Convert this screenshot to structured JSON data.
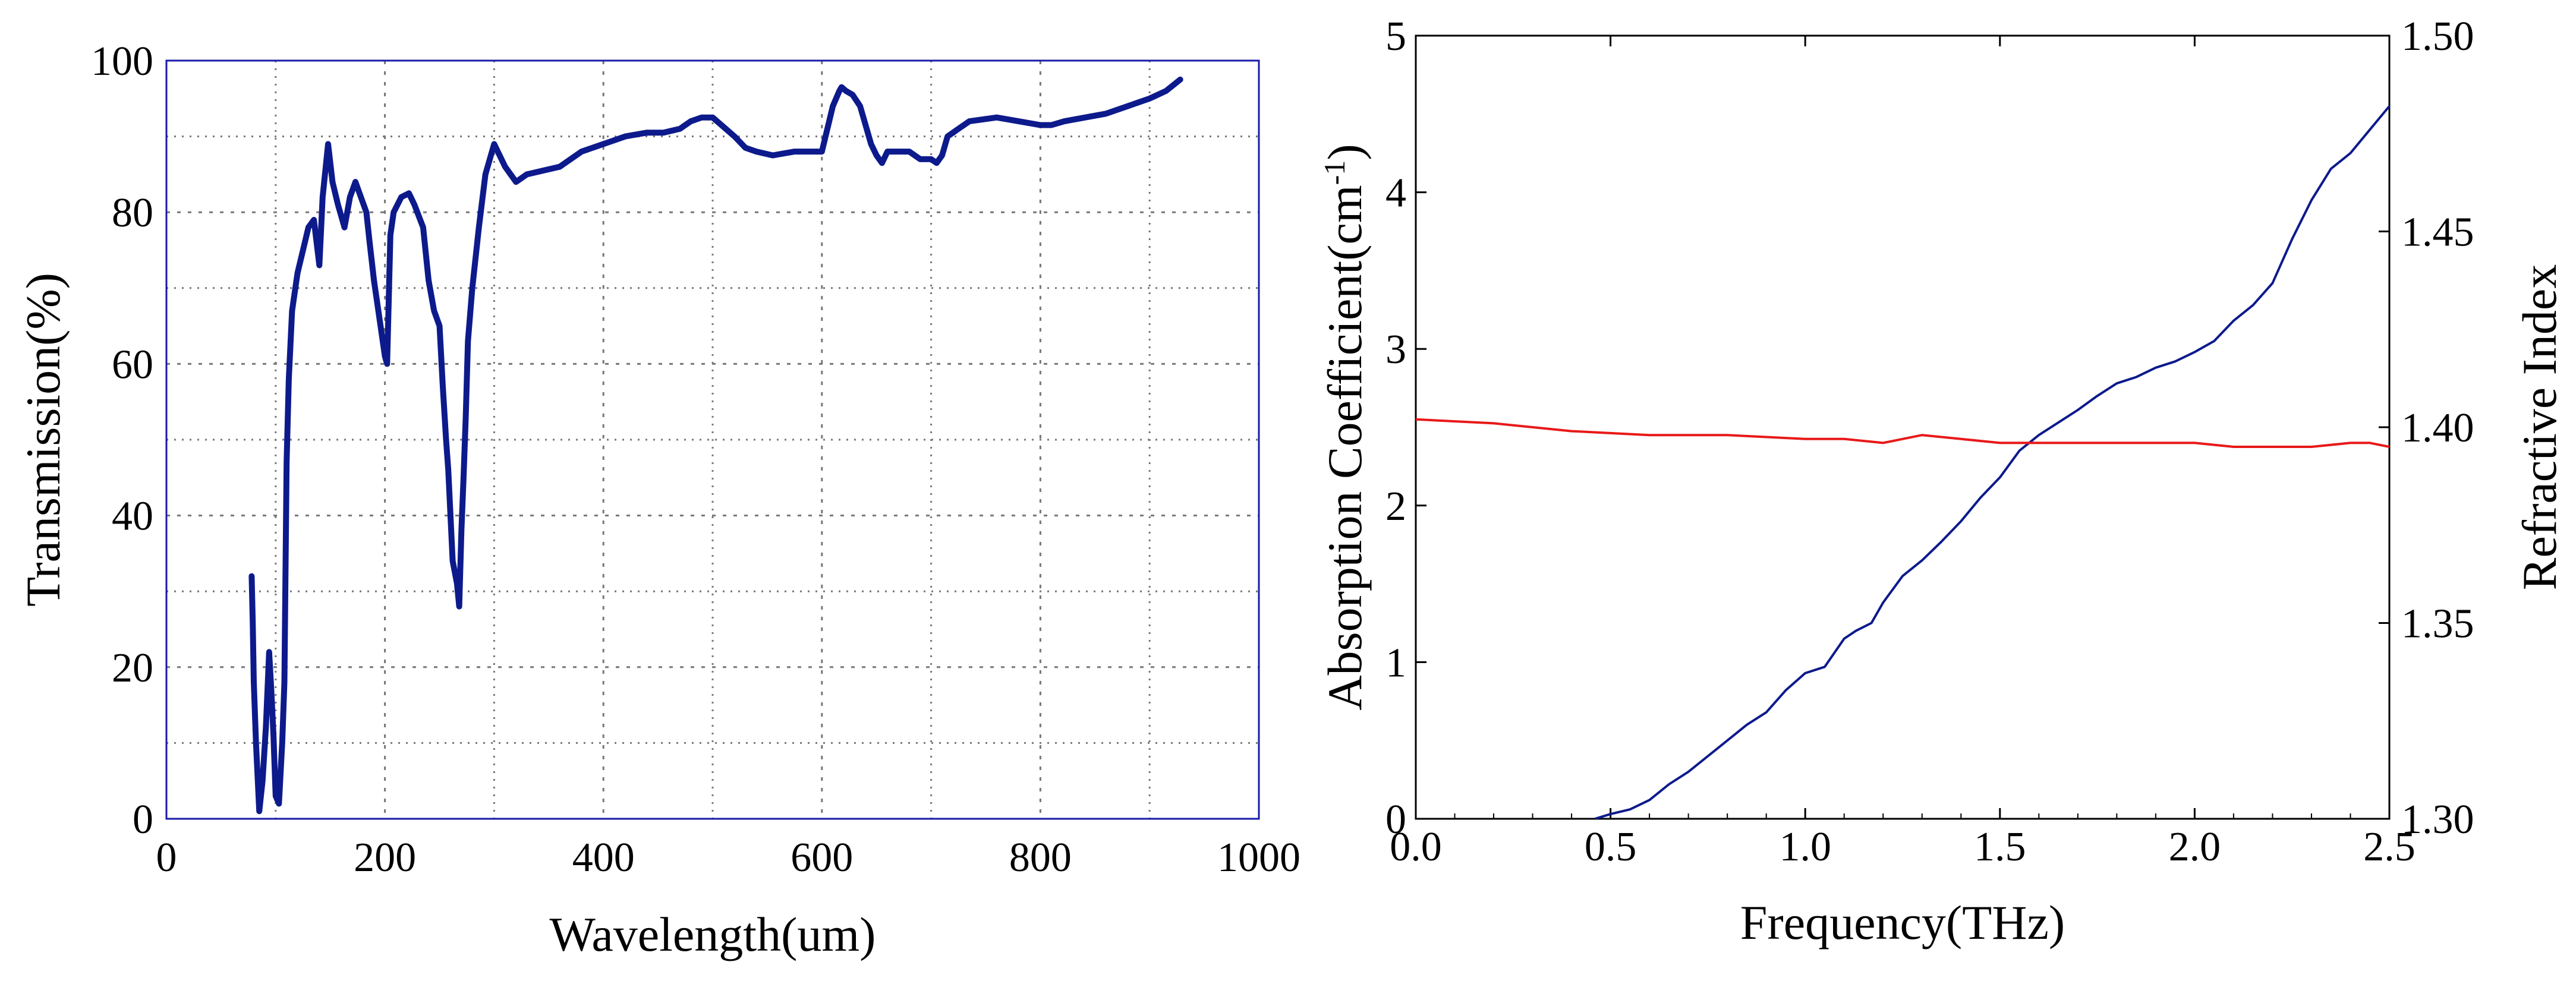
{
  "chart_data": [
    {
      "type": "line",
      "title": "",
      "xlabel": "Wavelength(um)",
      "ylabel": "Transmission(%)",
      "xlim": [
        0,
        1000
      ],
      "ylim": [
        0,
        100
      ],
      "xticks": [
        0,
        200,
        400,
        600,
        800,
        1000
      ],
      "yticks": [
        0,
        20,
        40,
        60,
        80,
        100
      ],
      "xtick_labels": [
        "0",
        "200",
        "400",
        "600",
        "800",
        "1000"
      ],
      "ytick_labels": [
        "0",
        "20",
        "40",
        "60",
        "80",
        "100"
      ],
      "grid": true,
      "series": [
        {
          "name": "Transmission",
          "color": "#0d1a8c",
          "x": [
            78,
            79,
            80,
            82,
            85,
            88,
            91,
            94,
            96,
            98,
            100,
            103,
            106,
            108,
            110,
            112,
            115,
            120,
            125,
            130,
            135,
            140,
            143,
            148,
            152,
            157,
            163,
            168,
            173,
            178,
            183,
            186,
            190,
            195,
            200,
            202,
            205,
            208,
            215,
            222,
            227,
            235,
            240,
            245,
            250,
            253,
            256,
            258,
            262,
            266,
            268,
            270,
            272,
            274,
            276,
            280,
            286,
            292,
            300,
            310,
            320,
            330,
            345,
            360,
            380,
            400,
            420,
            440,
            455,
            470,
            480,
            490,
            500,
            512,
            520,
            530,
            540,
            555,
            575,
            600,
            610,
            616,
            618,
            622,
            628,
            635,
            645,
            650,
            655,
            660,
            670,
            680,
            690,
            700,
            705,
            710,
            715,
            725,
            735,
            760,
            780,
            800,
            810,
            822,
            860,
            880,
            900,
            915,
            928
          ],
          "y": [
            32,
            26,
            18,
            10,
            1,
            5,
            12,
            22,
            17,
            11,
            3,
            2,
            10,
            18,
            47,
            58,
            67,
            72,
            75,
            78,
            79,
            73,
            82,
            89,
            84,
            81,
            78,
            82,
            84,
            82,
            80,
            76,
            71,
            66,
            61,
            60,
            77,
            80,
            82,
            82.5,
            81,
            78,
            71,
            67,
            65,
            57,
            50,
            46,
            34,
            31,
            28,
            38,
            45,
            53,
            63,
            70,
            78,
            85,
            89,
            86,
            84,
            85,
            85.5,
            86,
            88,
            89,
            90,
            90.5,
            90.5,
            91,
            92,
            92.5,
            92.5,
            91,
            90,
            88.5,
            88,
            87.5,
            88,
            88,
            94,
            96,
            96.5,
            96,
            95.5,
            94,
            89,
            87.5,
            86.5,
            88,
            88,
            88,
            87,
            87,
            86.5,
            87.5,
            90,
            91,
            92,
            92.5,
            92,
            91.5,
            91.5,
            92,
            93,
            94,
            95,
            96,
            97.5
          ]
        }
      ]
    },
    {
      "type": "line",
      "title": "",
      "xlabel": "Frequency(THz)",
      "ylabel": "Absorption Coefficient(cm",
      "ylabel_sup": "-1",
      "ylabel_close": ")",
      "y2label": "Refractive Index",
      "xlim": [
        0,
        2.5
      ],
      "ylim": [
        0,
        5
      ],
      "y2lim": [
        1.3,
        1.5
      ],
      "xticks": [
        0,
        0.5,
        1.0,
        1.5,
        2.0,
        2.5
      ],
      "yticks": [
        0,
        1,
        2,
        3,
        4,
        5
      ],
      "y2ticks": [
        1.3,
        1.35,
        1.4,
        1.45,
        1.5
      ],
      "xtick_labels": [
        "0.0",
        "0.5",
        "1.0",
        "1.5",
        "2.0",
        "2.5"
      ],
      "ytick_labels": [
        "0",
        "1",
        "2",
        "3",
        "4",
        "5"
      ],
      "y2tick_labels": [
        "1.30",
        "1.35",
        "1.40",
        "1.45",
        "1.50"
      ],
      "grid": false,
      "series": [
        {
          "name": "Absorption Coefficient",
          "axis": "left",
          "color": "#0d1a8c",
          "x": [
            0.46,
            0.5,
            0.55,
            0.6,
            0.65,
            0.7,
            0.75,
            0.8,
            0.85,
            0.9,
            0.95,
            1.0,
            1.05,
            1.1,
            1.13,
            1.17,
            1.2,
            1.25,
            1.3,
            1.35,
            1.4,
            1.45,
            1.5,
            1.55,
            1.6,
            1.65,
            1.7,
            1.75,
            1.8,
            1.85,
            1.9,
            1.95,
            2.0,
            2.05,
            2.1,
            2.15,
            2.2,
            2.25,
            2.3,
            2.35,
            2.4,
            2.45,
            2.5
          ],
          "y": [
            0.0,
            0.03,
            0.06,
            0.12,
            0.22,
            0.3,
            0.4,
            0.5,
            0.6,
            0.68,
            0.82,
            0.93,
            0.97,
            1.15,
            1.2,
            1.25,
            1.38,
            1.55,
            1.65,
            1.77,
            1.9,
            2.05,
            2.18,
            2.35,
            2.45,
            2.53,
            2.61,
            2.7,
            2.78,
            2.82,
            2.88,
            2.92,
            2.98,
            3.05,
            3.18,
            3.28,
            3.42,
            3.7,
            3.95,
            4.15,
            4.25,
            4.4,
            4.55
          ]
        },
        {
          "name": "Refractive Index",
          "axis": "right",
          "color": "#e81919",
          "x": [
            0.0,
            0.2,
            0.4,
            0.6,
            0.8,
            1.0,
            1.1,
            1.2,
            1.25,
            1.3,
            1.4,
            1.5,
            1.6,
            1.7,
            1.8,
            1.9,
            2.0,
            2.1,
            2.2,
            2.3,
            2.4,
            2.45,
            2.5
          ],
          "y": [
            1.402,
            1.401,
            1.399,
            1.398,
            1.398,
            1.397,
            1.397,
            1.396,
            1.397,
            1.398,
            1.397,
            1.396,
            1.396,
            1.396,
            1.396,
            1.396,
            1.396,
            1.395,
            1.395,
            1.395,
            1.396,
            1.396,
            1.395
          ]
        }
      ]
    }
  ]
}
